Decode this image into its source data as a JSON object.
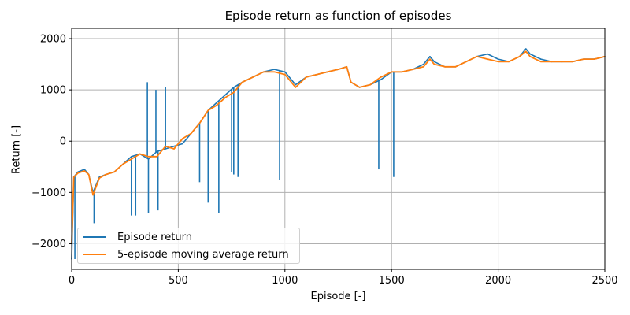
{
  "chart_data": {
    "type": "line",
    "title": "Episode return as function of episodes",
    "xlabel": "Episode [-]",
    "ylabel": "Return [-]",
    "xlim": [
      0,
      2500
    ],
    "ylim": [
      -2500,
      2200
    ],
    "xticks": [
      0,
      500,
      1000,
      1500,
      2000,
      2500
    ],
    "yticks": [
      -2000,
      -1000,
      0,
      1000,
      2000
    ],
    "xtick_labels": [
      "0",
      "500",
      "1000",
      "1500",
      "2000",
      "2500"
    ],
    "ytick_labels": [
      "−2000",
      "−1000",
      "0",
      "1000",
      "2000"
    ],
    "grid": true,
    "legend_position": "lower-left",
    "series": [
      {
        "name": "Episode return",
        "color": "#1f77b4",
        "x": [
          0,
          10,
          30,
          60,
          80,
          100,
          130,
          160,
          200,
          240,
          280,
          320,
          360,
          400,
          440,
          480,
          520,
          560,
          600,
          640,
          680,
          720,
          760,
          800,
          850,
          900,
          950,
          1000,
          1050,
          1100,
          1150,
          1200,
          1250,
          1290,
          1310,
          1350,
          1400,
          1450,
          1500,
          1550,
          1600,
          1650,
          1680,
          1700,
          1750,
          1800,
          1850,
          1900,
          1950,
          2000,
          2050,
          2100,
          2130,
          2150,
          2200,
          2250,
          2300,
          2350,
          2400,
          2450,
          2500
        ],
        "y": [
          -2300,
          -700,
          -600,
          -550,
          -650,
          -1000,
          -700,
          -650,
          -600,
          -450,
          -300,
          -250,
          -350,
          -200,
          -150,
          -100,
          -50,
          150,
          350,
          600,
          750,
          900,
          1050,
          1150,
          1250,
          1350,
          1400,
          1350,
          1100,
          1250,
          1300,
          1350,
          1400,
          1450,
          1150,
          1050,
          1100,
          1200,
          1350,
          1350,
          1400,
          1500,
          1650,
          1550,
          1450,
          1450,
          1550,
          1650,
          1700,
          1600,
          1550,
          1650,
          1800,
          1700,
          1600,
          1550,
          1550,
          1550,
          1600,
          1600,
          1650
        ],
        "spikes": [
          {
            "x": 15,
            "y": -2300
          },
          {
            "x": 105,
            "y": -1600
          },
          {
            "x": 280,
            "y": -1450
          },
          {
            "x": 300,
            "y": -1450
          },
          {
            "x": 355,
            "y": 1150
          },
          {
            "x": 360,
            "y": -1400
          },
          {
            "x": 395,
            "y": 1000
          },
          {
            "x": 405,
            "y": -1350
          },
          {
            "x": 440,
            "y": 1050
          },
          {
            "x": 600,
            "y": -800
          },
          {
            "x": 640,
            "y": -1200
          },
          {
            "x": 690,
            "y": -1400
          },
          {
            "x": 750,
            "y": -600
          },
          {
            "x": 760,
            "y": -650
          },
          {
            "x": 780,
            "y": -700
          },
          {
            "x": 975,
            "y": -750
          },
          {
            "x": 1440,
            "y": -550
          },
          {
            "x": 1510,
            "y": -700
          }
        ]
      },
      {
        "name": "5-episode moving average return",
        "color": "#ff7f0e",
        "x": [
          0,
          10,
          30,
          60,
          80,
          100,
          130,
          160,
          200,
          240,
          280,
          320,
          360,
          400,
          440,
          480,
          520,
          560,
          600,
          640,
          680,
          720,
          760,
          800,
          850,
          900,
          950,
          1000,
          1050,
          1100,
          1150,
          1200,
          1250,
          1290,
          1310,
          1350,
          1400,
          1450,
          1500,
          1550,
          1600,
          1650,
          1680,
          1700,
          1750,
          1800,
          1850,
          1900,
          1950,
          2000,
          2050,
          2100,
          2130,
          2150,
          2200,
          2250,
          2300,
          2350,
          2400,
          2450,
          2500
        ],
        "y": [
          -2000,
          -700,
          -620,
          -580,
          -650,
          -1050,
          -720,
          -650,
          -600,
          -450,
          -350,
          -250,
          -300,
          -300,
          -100,
          -150,
          50,
          150,
          350,
          600,
          700,
          850,
          950,
          1150,
          1250,
          1350,
          1350,
          1300,
          1050,
          1250,
          1300,
          1350,
          1400,
          1450,
          1150,
          1050,
          1100,
          1250,
          1350,
          1350,
          1400,
          1450,
          1600,
          1500,
          1450,
          1450,
          1550,
          1650,
          1600,
          1550,
          1550,
          1650,
          1750,
          1650,
          1550,
          1550,
          1550,
          1550,
          1600,
          1600,
          1650
        ]
      }
    ]
  }
}
